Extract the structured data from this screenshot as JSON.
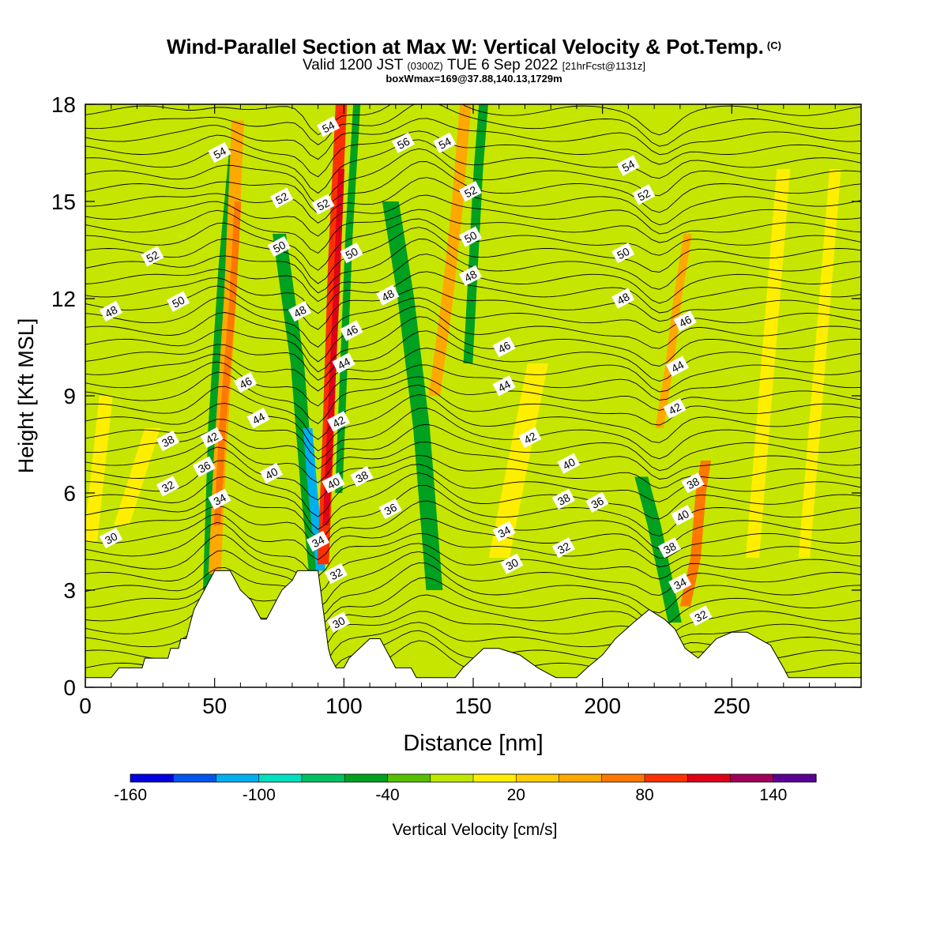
{
  "header": {
    "title": "Wind-Parallel Section at Max W: Vertical Velocity & Pot.Temp.",
    "title_mark": "(C)",
    "valid_a": "Valid 1200 JST",
    "valid_b": "(0300Z)",
    "valid_c": "TUE 6 Sep 2022",
    "valid_d": "[21hrFcst@1131z]",
    "box": "boxWmax=169@37.88,140.13,1729m"
  },
  "chart_data": {
    "type": "heatmap",
    "xlabel": "Distance [nm]",
    "ylabel": "Height [Kft MSL]",
    "xlim": [
      0,
      300
    ],
    "ylim": [
      0,
      18
    ],
    "xticks": [
      0,
      50,
      100,
      150,
      200,
      250
    ],
    "yticks": [
      0,
      3,
      6,
      9,
      12,
      15,
      18
    ],
    "colorbar": {
      "label": "Vertical Velocity [cm/s]",
      "min": -160,
      "max": 160,
      "step": 20,
      "tick_labels": [
        -160,
        -100,
        -40,
        20,
        80,
        140
      ],
      "colors": [
        "#0000e0",
        "#0055ee",
        "#00b0ee",
        "#00e0c0",
        "#00c060",
        "#00a020",
        "#55c000",
        "#bee800",
        "#ffee00",
        "#ffcc00",
        "#ffa800",
        "#ff7800",
        "#ff3000",
        "#e00018",
        "#a0005a",
        "#5a0096"
      ]
    },
    "background_color": "#c6e600",
    "terrain": [
      [
        0,
        0.3
      ],
      [
        5,
        0.3
      ],
      [
        10,
        0.3
      ],
      [
        13,
        0.6
      ],
      [
        22,
        0.6
      ],
      [
        23,
        0.9
      ],
      [
        32,
        0.9
      ],
      [
        33,
        1.2
      ],
      [
        36,
        1.2
      ],
      [
        37,
        1.5
      ],
      [
        39,
        1.5
      ],
      [
        40,
        1.8
      ],
      [
        41,
        2.1
      ],
      [
        42,
        2.4
      ],
      [
        44,
        2.7
      ],
      [
        46,
        3.0
      ],
      [
        48,
        3.3
      ],
      [
        50,
        3.6
      ],
      [
        56,
        3.6
      ],
      [
        58,
        3.3
      ],
      [
        60,
        3.0
      ],
      [
        64,
        2.7
      ],
      [
        66,
        2.4
      ],
      [
        68,
        2.1
      ],
      [
        70,
        2.1
      ],
      [
        72,
        2.4
      ],
      [
        74,
        2.7
      ],
      [
        76,
        3.0
      ],
      [
        80,
        3.3
      ],
      [
        82,
        3.6
      ],
      [
        90,
        3.6
      ],
      [
        91,
        3.0
      ],
      [
        92,
        2.4
      ],
      [
        93,
        1.8
      ],
      [
        94,
        1.2
      ],
      [
        95,
        0.9
      ],
      [
        97,
        0.6
      ],
      [
        100,
        0.6
      ],
      [
        102,
        0.9
      ],
      [
        106,
        1.2
      ],
      [
        110,
        1.5
      ],
      [
        114,
        1.5
      ],
      [
        116,
        1.2
      ],
      [
        118,
        0.9
      ],
      [
        120,
        0.6
      ],
      [
        126,
        0.6
      ],
      [
        128,
        0.3
      ],
      [
        143,
        0.3
      ],
      [
        146,
        0.6
      ],
      [
        154,
        1.2
      ],
      [
        160,
        1.2
      ],
      [
        168,
        1.0
      ],
      [
        175,
        0.6
      ],
      [
        182,
        0.3
      ],
      [
        190,
        0.3
      ],
      [
        194,
        0.6
      ],
      [
        200,
        1.0
      ],
      [
        205,
        1.5
      ],
      [
        212,
        2.0
      ],
      [
        218,
        2.4
      ],
      [
        224,
        2.1
      ],
      [
        228,
        1.8
      ],
      [
        232,
        1.2
      ],
      [
        237,
        0.9
      ],
      [
        244,
        1.5
      ],
      [
        250,
        1.7
      ],
      [
        256,
        1.7
      ],
      [
        265,
        1.3
      ],
      [
        270,
        0.6
      ],
      [
        272,
        0.3
      ],
      [
        300,
        0.3
      ]
    ],
    "velocity_bands": [
      {
        "x": [
          48,
          50,
          54,
          58
        ],
        "y": [
          3.0,
          8.0,
          13.0,
          16.5
        ],
        "w": 2.5,
        "color": "#00a020"
      },
      {
        "x": [
          50,
          52,
          56,
          59
        ],
        "y": [
          3.5,
          7.0,
          12.0,
          17.5
        ],
        "w": 2.4,
        "color": "#ffa800"
      },
      {
        "x": [
          51,
          53,
          57,
          59
        ],
        "y": [
          5.0,
          8.0,
          12.0,
          15.0
        ],
        "w": 1.3,
        "color": "#ff7800"
      },
      {
        "x": [
          75,
          82,
          86,
          89
        ],
        "y": [
          14.0,
          10.0,
          6.0,
          3.6
        ],
        "w": 2.6,
        "color": "#00a020"
      },
      {
        "x": [
          86,
          88,
          90,
          91
        ],
        "y": [
          8.0,
          6.0,
          4.5,
          3.6
        ],
        "w": 1.8,
        "color": "#00b0ee"
      },
      {
        "x": [
          92,
          94,
          96,
          99
        ],
        "y": [
          3.8,
          8.0,
          13.0,
          18.0
        ],
        "w": 2.2,
        "color": "#ff3000"
      },
      {
        "x": [
          93,
          95,
          97,
          99
        ],
        "y": [
          5.0,
          8.5,
          12.0,
          16.0
        ],
        "w": 1.2,
        "color": "#e00018"
      },
      {
        "x": [
          98,
          100,
          102,
          105
        ],
        "y": [
          6.0,
          10.0,
          14.0,
          18.0
        ],
        "w": 1.4,
        "color": "#00a020"
      },
      {
        "x": [
          118,
          124,
          130,
          135
        ],
        "y": [
          15.0,
          12.0,
          8.0,
          3.0
        ],
        "w": 3.2,
        "color": "#00a020"
      },
      {
        "x": [
          135,
          140,
          144,
          147
        ],
        "y": [
          9.0,
          12.0,
          15.0,
          18.0
        ],
        "w": 2.2,
        "color": "#ffa800"
      },
      {
        "x": [
          148,
          150,
          152,
          154
        ],
        "y": [
          10.0,
          13.0,
          16.0,
          18.0
        ],
        "w": 1.8,
        "color": "#00a020"
      },
      {
        "x": [
          215,
          220,
          224,
          228
        ],
        "y": [
          6.5,
          5.0,
          3.5,
          2.0
        ],
        "w": 2.6,
        "color": "#00a020"
      },
      {
        "x": [
          222,
          226,
          229,
          233
        ],
        "y": [
          8.0,
          10.0,
          12.0,
          14.0
        ],
        "w": 1.6,
        "color": "#ffa800"
      },
      {
        "x": [
          232,
          236,
          238,
          240
        ],
        "y": [
          2.5,
          4.0,
          6.0,
          7.0
        ],
        "w": 2.0,
        "color": "#ff7800"
      },
      {
        "x": [
          2,
          4,
          6,
          8
        ],
        "y": [
          4.5,
          6.0,
          7.5,
          9.0
        ],
        "w": 2.6,
        "color": "#ffee00"
      },
      {
        "x": [
          14,
          18,
          22,
          26
        ],
        "y": [
          5.0,
          6.0,
          7.0,
          8.0
        ],
        "w": 3.0,
        "color": "#ffee00"
      },
      {
        "x": [
          160,
          165,
          170,
          175
        ],
        "y": [
          4.0,
          6.0,
          8.0,
          10.0
        ],
        "w": 4.0,
        "color": "#ffee00"
      },
      {
        "x": [
          258,
          262,
          266,
          270
        ],
        "y": [
          4.0,
          8.0,
          12.0,
          16.0
        ],
        "w": 2.6,
        "color": "#ffee00"
      },
      {
        "x": [
          278,
          282,
          286,
          290
        ],
        "y": [
          4.0,
          8.0,
          12.0,
          16.0
        ],
        "w": 2.2,
        "color": "#ffee00"
      }
    ],
    "theta_labels": [
      {
        "text": "54",
        "x": 52,
        "y": 16.5
      },
      {
        "text": "52",
        "x": 76,
        "y": 15.1
      },
      {
        "text": "50",
        "x": 75,
        "y": 13.6
      },
      {
        "text": "52",
        "x": 26,
        "y": 13.3
      },
      {
        "text": "50",
        "x": 36,
        "y": 11.9
      },
      {
        "text": "48",
        "x": 10,
        "y": 11.6
      },
      {
        "text": "48",
        "x": 83,
        "y": 11.6
      },
      {
        "text": "46",
        "x": 62,
        "y": 9.4
      },
      {
        "text": "44",
        "x": 67,
        "y": 8.3
      },
      {
        "text": "42",
        "x": 49,
        "y": 7.7
      },
      {
        "text": "38",
        "x": 32,
        "y": 7.6
      },
      {
        "text": "36",
        "x": 46,
        "y": 6.8
      },
      {
        "text": "40",
        "x": 72,
        "y": 6.6
      },
      {
        "text": "32",
        "x": 32,
        "y": 6.2
      },
      {
        "text": "34",
        "x": 52,
        "y": 5.8
      },
      {
        "text": "30",
        "x": 10,
        "y": 4.6
      },
      {
        "text": "54",
        "x": 94,
        "y": 17.3
      },
      {
        "text": "52",
        "x": 92,
        "y": 14.9
      },
      {
        "text": "50",
        "x": 103,
        "y": 13.4
      },
      {
        "text": "46",
        "x": 103,
        "y": 11.0
      },
      {
        "text": "44",
        "x": 100,
        "y": 10.0
      },
      {
        "text": "42",
        "x": 98,
        "y": 8.2
      },
      {
        "text": "40",
        "x": 96,
        "y": 6.3
      },
      {
        "text": "38",
        "x": 107,
        "y": 6.5
      },
      {
        "text": "36",
        "x": 118,
        "y": 5.5
      },
      {
        "text": "34",
        "x": 90,
        "y": 4.5
      },
      {
        "text": "32",
        "x": 97,
        "y": 3.5
      },
      {
        "text": "30",
        "x": 98,
        "y": 2.0
      },
      {
        "text": "56",
        "x": 123,
        "y": 16.8
      },
      {
        "text": "54",
        "x": 139,
        "y": 16.8
      },
      {
        "text": "48",
        "x": 117,
        "y": 12.1
      },
      {
        "text": "52",
        "x": 149,
        "y": 15.3
      },
      {
        "text": "50",
        "x": 149,
        "y": 13.9
      },
      {
        "text": "48",
        "x": 149,
        "y": 12.7
      },
      {
        "text": "46",
        "x": 162,
        "y": 10.5
      },
      {
        "text": "44",
        "x": 162,
        "y": 9.3
      },
      {
        "text": "42",
        "x": 172,
        "y": 7.7
      },
      {
        "text": "40",
        "x": 187,
        "y": 6.9
      },
      {
        "text": "38",
        "x": 185,
        "y": 5.8
      },
      {
        "text": "36",
        "x": 198,
        "y": 5.7
      },
      {
        "text": "34",
        "x": 162,
        "y": 4.8
      },
      {
        "text": "32",
        "x": 185,
        "y": 4.3
      },
      {
        "text": "30",
        "x": 165,
        "y": 3.8
      },
      {
        "text": "54",
        "x": 210,
        "y": 16.1
      },
      {
        "text": "52",
        "x": 216,
        "y": 15.2
      },
      {
        "text": "50",
        "x": 208,
        "y": 13.4
      },
      {
        "text": "48",
        "x": 208,
        "y": 12.0
      },
      {
        "text": "46",
        "x": 232,
        "y": 11.3
      },
      {
        "text": "44",
        "x": 229,
        "y": 9.9
      },
      {
        "text": "42",
        "x": 228,
        "y": 8.6
      },
      {
        "text": "38",
        "x": 235,
        "y": 6.3
      },
      {
        "text": "40",
        "x": 231,
        "y": 5.3
      },
      {
        "text": "38",
        "x": 226,
        "y": 4.3
      },
      {
        "text": "34",
        "x": 230,
        "y": 3.2
      },
      {
        "text": "32",
        "x": 238,
        "y": 2.2
      }
    ]
  }
}
